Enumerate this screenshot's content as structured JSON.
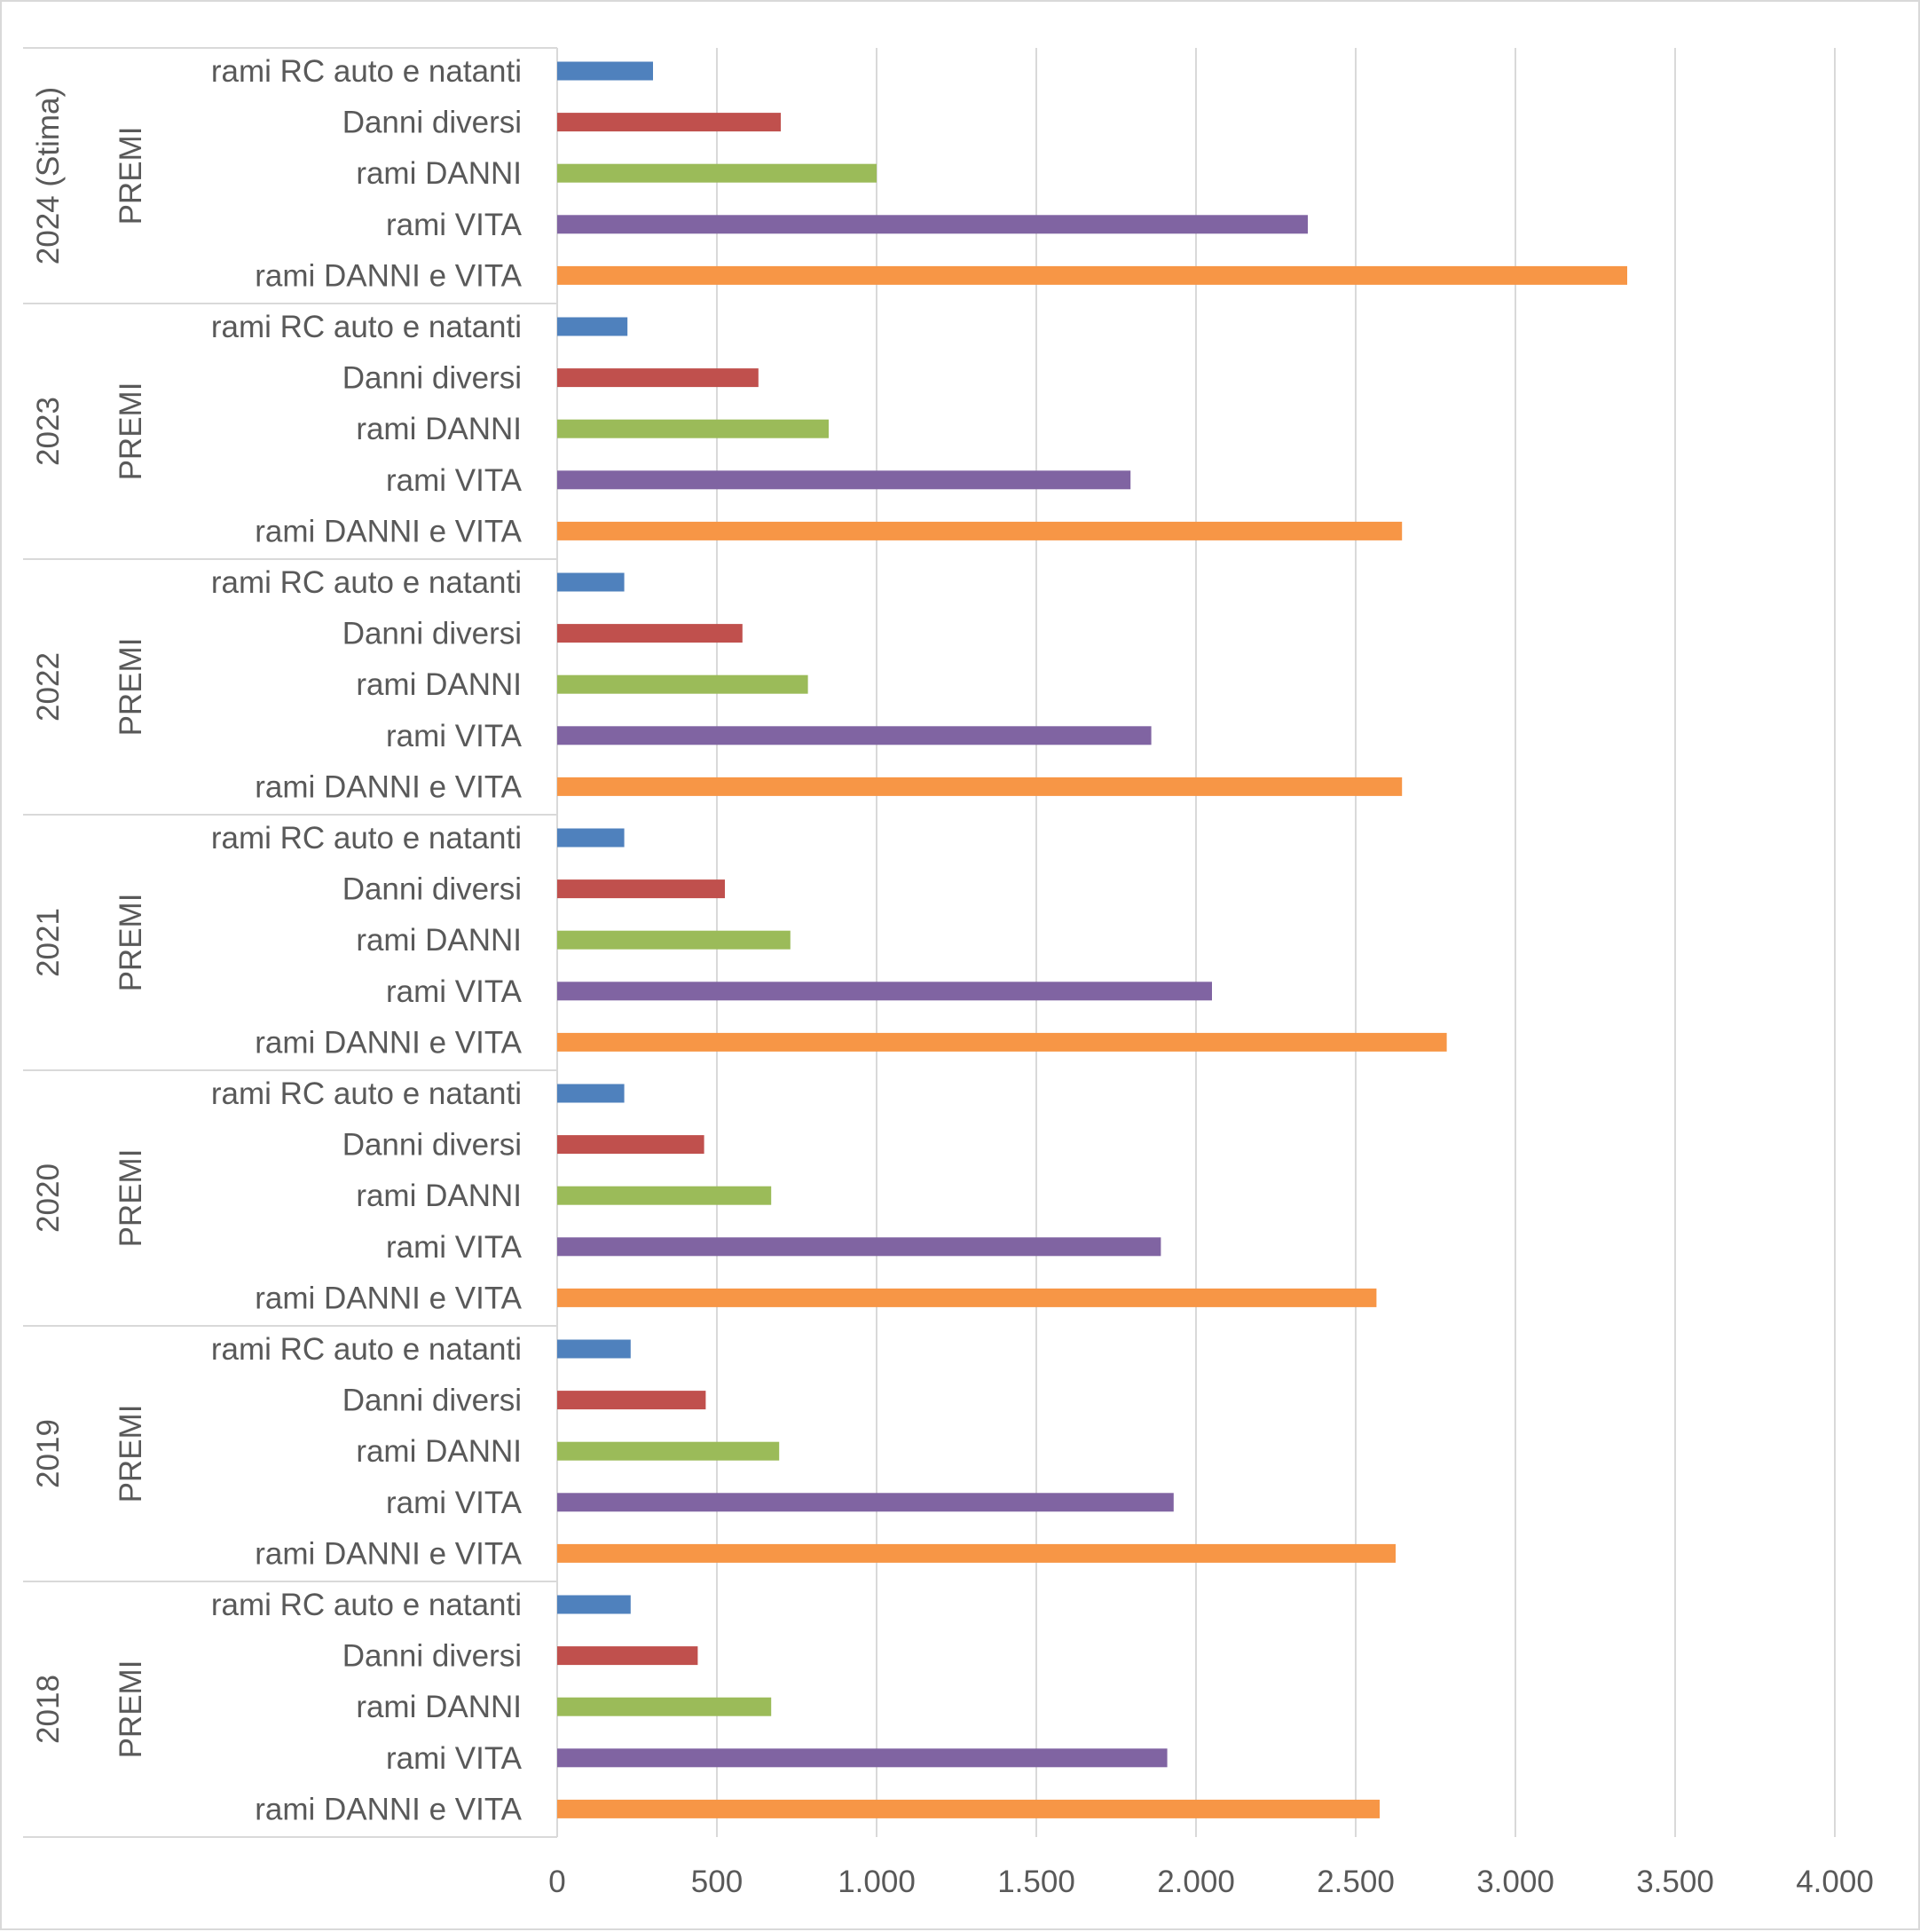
{
  "chart_data": {
    "type": "bar",
    "orientation": "horizontal",
    "title": "",
    "xlabel": "",
    "ylabel": "",
    "xlim": [
      0,
      4000
    ],
    "xticks": [
      0,
      500,
      1000,
      1500,
      2000,
      2500,
      3000,
      3500,
      4000
    ],
    "xtick_labels": [
      "0",
      "500",
      "1.000",
      "1.500",
      "2.000",
      "2.500",
      "3.000",
      "3.500",
      "4.000"
    ],
    "grid": "vertical",
    "legend": "none",
    "series_meta": [
      {
        "name": "rami RC auto e natanti",
        "color": "#4f81bd"
      },
      {
        "name": "Danni diversi",
        "color": "#c0504d"
      },
      {
        "name": "rami DANNI",
        "color": "#9bbb59"
      },
      {
        "name": "rami VITA",
        "color": "#8064a2"
      },
      {
        "name": "rami DANNI e VITA",
        "color": "#f79646"
      }
    ],
    "groups": [
      {
        "year": "2024 (Stima)",
        "measure": "PREMI",
        "items": [
          {
            "label": "rami RC auto e natanti",
            "value": 300
          },
          {
            "label": "Danni diversi",
            "value": 700
          },
          {
            "label": "rami DANNI",
            "value": 1000
          },
          {
            "label": "rami VITA",
            "value": 2350
          },
          {
            "label": "rami DANNI e VITA",
            "value": 3350
          }
        ]
      },
      {
        "year": "2023",
        "measure": "PREMI",
        "items": [
          {
            "label": "rami RC auto e natanti",
            "value": 220
          },
          {
            "label": "Danni diversi",
            "value": 630
          },
          {
            "label": "rami DANNI",
            "value": 850
          },
          {
            "label": "rami VITA",
            "value": 1795
          },
          {
            "label": "rami DANNI e VITA",
            "value": 2645
          }
        ]
      },
      {
        "year": "2022",
        "measure": "PREMI",
        "items": [
          {
            "label": "rami RC auto e natanti",
            "value": 210
          },
          {
            "label": "Danni diversi",
            "value": 580
          },
          {
            "label": "rami DANNI",
            "value": 785
          },
          {
            "label": "rami VITA",
            "value": 1860
          },
          {
            "label": "rami DANNI e VITA",
            "value": 2645
          }
        ]
      },
      {
        "year": "2021",
        "measure": "PREMI",
        "items": [
          {
            "label": "rami RC auto e natanti",
            "value": 210
          },
          {
            "label": "Danni diversi",
            "value": 525
          },
          {
            "label": "rami DANNI",
            "value": 730
          },
          {
            "label": "rami VITA",
            "value": 2050
          },
          {
            "label": "rami DANNI e VITA",
            "value": 2785
          }
        ]
      },
      {
        "year": "2020",
        "measure": "PREMI",
        "items": [
          {
            "label": "rami RC auto e natanti",
            "value": 210
          },
          {
            "label": "Danni diversi",
            "value": 460
          },
          {
            "label": "rami DANNI",
            "value": 670
          },
          {
            "label": "rami VITA",
            "value": 1890
          },
          {
            "label": "rami DANNI e VITA",
            "value": 2565
          }
        ]
      },
      {
        "year": "2019",
        "measure": "PREMI",
        "items": [
          {
            "label": "rami RC auto e natanti",
            "value": 230
          },
          {
            "label": "Danni diversi",
            "value": 465
          },
          {
            "label": "rami DANNI",
            "value": 695
          },
          {
            "label": "rami VITA",
            "value": 1930
          },
          {
            "label": "rami DANNI e VITA",
            "value": 2625
          }
        ]
      },
      {
        "year": "2018",
        "measure": "PREMI",
        "items": [
          {
            "label": "rami RC auto e natanti",
            "value": 230
          },
          {
            "label": "Danni diversi",
            "value": 440
          },
          {
            "label": "rami DANNI",
            "value": 670
          },
          {
            "label": "rami VITA",
            "value": 1910
          },
          {
            "label": "rami DANNI e VITA",
            "value": 2575
          }
        ]
      }
    ]
  }
}
